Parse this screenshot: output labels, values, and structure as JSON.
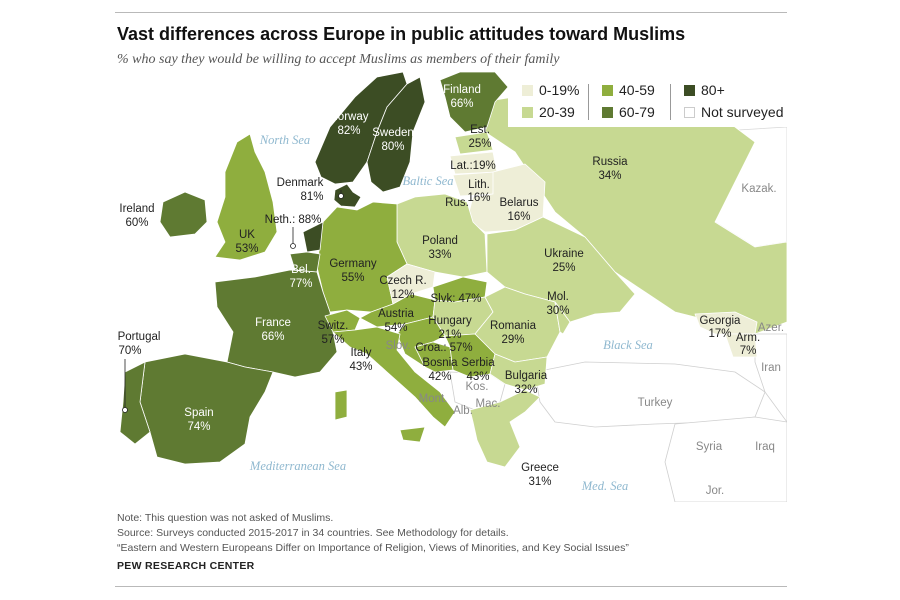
{
  "title": "Vast differences across Europe in public attitudes toward Muslims",
  "subtitle": "% who say they would be willing to accept Muslims as members of their family",
  "legend": [
    {
      "label": "0-19%",
      "color": "#eeeed7"
    },
    {
      "label": "20-39",
      "color": "#c7d992"
    },
    {
      "label": "40-59",
      "color": "#8fae3e"
    },
    {
      "label": "60-79",
      "color": "#5f7a32"
    },
    {
      "label": "80+",
      "color": "#3c4d24"
    },
    {
      "label": "Not surveyed",
      "color": "#ffffff"
    }
  ],
  "countries": [
    {
      "name": "Finland",
      "value": "66%"
    },
    {
      "name": "Norway",
      "value": "82%"
    },
    {
      "name": "Sweden",
      "value": "80%"
    },
    {
      "name": "Denmark",
      "value": "81%"
    },
    {
      "name": "Ireland",
      "value": "60%"
    },
    {
      "name": "UK",
      "value": "53%"
    },
    {
      "name": "Neth.",
      "value": "88%"
    },
    {
      "name": "Bel.",
      "value": "77%"
    },
    {
      "name": "France",
      "value": "66%"
    },
    {
      "name": "Germany",
      "value": "55%"
    },
    {
      "name": "Switz.",
      "value": "57%"
    },
    {
      "name": "Austria",
      "value": "54%"
    },
    {
      "name": "Italy",
      "value": "43%"
    },
    {
      "name": "Spain",
      "value": "74%"
    },
    {
      "name": "Portugal",
      "value": "70%"
    },
    {
      "name": "Est.",
      "value": "25%"
    },
    {
      "name": "Lat.",
      "value": "19%"
    },
    {
      "name": "Lith.",
      "value": "16%"
    },
    {
      "name": "Belarus",
      "value": "16%"
    },
    {
      "name": "Russia",
      "value": "34%"
    },
    {
      "name": "Poland",
      "value": "33%"
    },
    {
      "name": "Ukraine",
      "value": "25%"
    },
    {
      "name": "Czech R.",
      "value": "12%"
    },
    {
      "name": "Slvk",
      "value": "47%"
    },
    {
      "name": "Hungary",
      "value": "21%"
    },
    {
      "name": "Romania",
      "value": "29%"
    },
    {
      "name": "Mol.",
      "value": "30%"
    },
    {
      "name": "Croa.",
      "value": "57%"
    },
    {
      "name": "Bosnia",
      "value": "42%"
    },
    {
      "name": "Serbia",
      "value": "43%"
    },
    {
      "name": "Bulgaria",
      "value": "32%"
    },
    {
      "name": "Greece",
      "value": "31%"
    },
    {
      "name": "Georgia",
      "value": "17%"
    },
    {
      "name": "Arm.",
      "value": "7%"
    }
  ],
  "place_labels": [
    "Kazak.",
    "Rus.",
    "Slov.",
    "Kos.",
    "Mont.",
    "Alb.",
    "Mac.",
    "Turkey",
    "Syria",
    "Iraq",
    "Iran",
    "Azer.",
    "Jor."
  ],
  "seas": [
    "North Sea",
    "Baltic Sea",
    "Black Sea",
    "Mediterranean Sea",
    "Med. Sea"
  ],
  "notes": [
    "Note: This question was not asked of Muslims.",
    "Source: Surveys conducted 2015-2017 in 34 countries. See Methodology for details.",
    "“Eastern and Western Europeans Differ on Importance of Religion, Views of Minorities, and Key Social Issues”"
  ],
  "organization": "PEW RESEARCH CENTER"
}
